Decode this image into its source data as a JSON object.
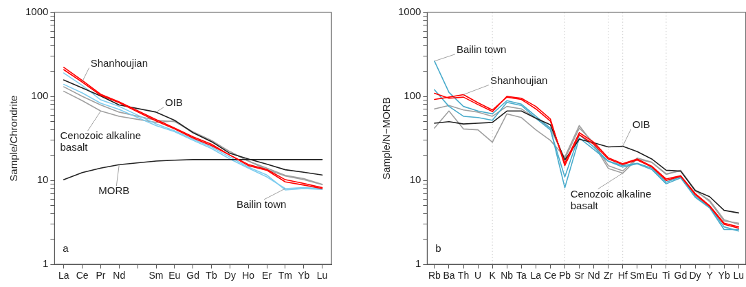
{
  "chart_data": [
    {
      "type": "line",
      "ylabel": "Sample/Chrondrite",
      "categories": [
        "La",
        "Ce",
        "Pr",
        "Nd",
        null,
        "Sm",
        "Eu",
        "Gd",
        "Tb",
        "Dy",
        "Ho",
        "Er",
        "Tm",
        "Yb",
        "Lu"
      ],
      "log": "y",
      "ylim": [
        1,
        1000
      ],
      "yticks": [
        1,
        {
          "value": 2,
          "label": null
        },
        {
          "value": 3,
          "label": null
        },
        {
          "value": 4,
          "label": null
        },
        {
          "value": 5,
          "label": null
        },
        {
          "value": 6,
          "label": null
        },
        {
          "value": 7,
          "label": null
        },
        {
          "value": 8,
          "label": null
        },
        {
          "value": 9,
          "label": null
        },
        10,
        {
          "value": 20,
          "label": null
        },
        {
          "value": 30,
          "label": null
        },
        {
          "value": 40,
          "label": null
        },
        {
          "value": 50,
          "label": null
        },
        {
          "value": 60,
          "label": null
        },
        {
          "value": 70,
          "label": null
        },
        {
          "value": 80,
          "label": null
        },
        {
          "value": 90,
          "label": null
        },
        100,
        {
          "value": 200,
          "label": null
        },
        {
          "value": 300,
          "label": null
        },
        {
          "value": 400,
          "label": null
        },
        {
          "value": 500,
          "label": null
        },
        {
          "value": 600,
          "label": null
        },
        {
          "value": 700,
          "label": null
        },
        {
          "value": 800,
          "label": null
        },
        {
          "value": 900,
          "label": null
        },
        1000
      ],
      "grid": false,
      "legend": false,
      "marker": "none",
      "line_style": "solid",
      "series": [
        {
          "color": "#a0a0a0",
          "values": [
            115,
            89,
            67,
            58,
            null,
            49,
            51,
            37,
            29,
            22,
            17,
            13.5,
            11.3,
            10.2,
            8.9
          ]
        },
        {
          "color": "#a0a0a0",
          "values": [
            130,
            100,
            79,
            65,
            null,
            52,
            50,
            38,
            30,
            22,
            17,
            14,
            11.5,
            10.5,
            9
          ]
        },
        {
          "color": "#7fcdef",
          "values": [
            190,
            135,
            91,
            76,
            null,
            47,
            39,
            31,
            25,
            19,
            14.4,
            11.6,
            7.7,
            8,
            7.8
          ]
        },
        {
          "color": "#7fcdef",
          "values": [
            139,
            110,
            83,
            70,
            null,
            45,
            38,
            30,
            24,
            18,
            14,
            11,
            8,
            8.2,
            8
          ]
        },
        {
          "color": "#222222",
          "values": [
            157,
            126,
            101,
            79,
            null,
            65,
            52,
            37,
            29,
            21,
            18,
            15.6,
            13.4,
            12.5,
            11.6
          ]
        },
        {
          "color": "#222222",
          "values": [
            10.2,
            12.4,
            14,
            15.4,
            null,
            17,
            17.4,
            17.7,
            17.7,
            17.7,
            17.7,
            17.7,
            17.7,
            17.7,
            17.7
          ]
        },
        {
          "color": "#ff0000",
          "values": [
            208,
            148,
            103,
            84,
            null,
            51,
            41,
            32,
            26,
            20,
            15,
            13.2,
            9.6,
            8.8,
            8
          ]
        },
        {
          "color": "#ff0000",
          "values": [
            222,
            155,
            106,
            86,
            null,
            53,
            42,
            33,
            27,
            20,
            15.5,
            13.5,
            10.2,
            9.2,
            8.2
          ]
        }
      ],
      "annotations": [
        {
          "text": "Shanhoujian",
          "x": "Ce",
          "y": 150
        },
        {
          "text": "OIB",
          "x": "Sm",
          "y": 65
        },
        {
          "text": "Cenozoic alkaline basalt",
          "x": "Pr",
          "y": 67
        },
        {
          "text": "MORB",
          "x": "Nd",
          "y": 15.4
        },
        {
          "text": "Bailin town",
          "x": "Tm",
          "y": 8
        },
        "a"
      ]
    },
    {
      "type": "line",
      "ylabel": "Sample/N−MORB",
      "categories": [
        "Rb",
        "Ba",
        "Th",
        "U",
        "K",
        "Nb",
        "Ta",
        "La",
        "Ce",
        "Pb",
        "Sr",
        "Nd",
        "Zr",
        "Hf",
        "Sm",
        "Eu",
        "Ti",
        "Gd",
        "Dy",
        "Y",
        "Yb",
        "Lu"
      ],
      "log": "y",
      "ylim": [
        1,
        1000
      ],
      "yticks": [
        1,
        {
          "value": 2,
          "label": null
        },
        {
          "value": 3,
          "label": null
        },
        {
          "value": 4,
          "label": null
        },
        {
          "value": 5,
          "label": null
        },
        {
          "value": 6,
          "label": null
        },
        {
          "value": 7,
          "label": null
        },
        {
          "value": 8,
          "label": null
        },
        {
          "value": 9,
          "label": null
        },
        10,
        {
          "value": 20,
          "label": null
        },
        {
          "value": 30,
          "label": null
        },
        {
          "value": 40,
          "label": null
        },
        {
          "value": 50,
          "label": null
        },
        {
          "value": 60,
          "label": null
        },
        {
          "value": 70,
          "label": null
        },
        {
          "value": 80,
          "label": null
        },
        {
          "value": 90,
          "label": null
        },
        100,
        {
          "value": 200,
          "label": null
        },
        {
          "value": 300,
          "label": null
        },
        {
          "value": 400,
          "label": null
        },
        {
          "value": 500,
          "label": null
        },
        {
          "value": 600,
          "label": null
        },
        {
          "value": 700,
          "label": null
        },
        {
          "value": 800,
          "label": null
        },
        {
          "value": 900,
          "label": null
        },
        1000
      ],
      "grid": false,
      "legend": false,
      "marker": "none",
      "line_style": "solid",
      "ref_lines": [
        {
          "axis": "x",
          "value": "K",
          "color": "#cccccc",
          "line_style": "dotted"
        },
        {
          "axis": "x",
          "value": "Pb",
          "color": "#cccccc",
          "line_style": "dotted"
        },
        {
          "axis": "x",
          "value": "Zr",
          "color": "#cccccc",
          "line_style": "dotted"
        },
        {
          "axis": "x",
          "value": "Hf",
          "color": "#cccccc",
          "line_style": "dotted"
        },
        {
          "axis": "x",
          "value": "Ti",
          "color": "#cccccc",
          "line_style": "dotted"
        }
      ],
      "series": [
        {
          "color": "#a0a0a0",
          "values": [
            42,
            67,
            41,
            40,
            28.5,
            62,
            56,
            40,
            30,
            19,
            45,
            26.7,
            13.9,
            12.2,
            18,
            16.4,
            11.8,
            13.2,
            7.7,
            5.6,
            3.3,
            3.1
          ]
        },
        {
          "color": "#a0a0a0",
          "values": [
            71,
            78,
            69,
            65,
            58,
            76,
            71,
            55,
            42,
            18,
            42,
            28,
            15,
            13,
            18.5,
            16.5,
            12,
            13,
            7.5,
            5.8,
            3.4,
            3.0
          ]
        },
        {
          "color": "#4aaccc",
          "values": [
            263,
            112,
            76,
            67,
            62,
            89,
            81,
            58,
            42,
            8.2,
            32,
            23.4,
            16.9,
            14.4,
            15.8,
            13.5,
            9.1,
            10.7,
            6.3,
            4.7,
            2.6,
            2.6
          ]
        },
        {
          "color": "#4aaccc",
          "values": [
            120,
            76,
            58,
            56,
            52,
            85,
            78,
            55,
            40,
            11,
            35,
            25,
            17,
            15,
            16,
            14,
            9.5,
            11,
            6.5,
            4.8,
            2.8,
            2.5
          ]
        },
        {
          "color": "#222222",
          "values": [
            48,
            50,
            47,
            48,
            49,
            67,
            67,
            55,
            46,
            17.5,
            31,
            28,
            25,
            25.5,
            22,
            18,
            13.2,
            12.9,
            7.6,
            6.4,
            4.4,
            4.1
          ]
        },
        {
          "color": "#ff0000",
          "values": [
            92,
            98,
            105,
            84,
            69,
            98,
            92,
            71,
            51,
            16,
            37,
            28.5,
            18.6,
            15.8,
            18,
            14.8,
            10.4,
            11.4,
            7.0,
            5.0,
            3.1,
            2.8
          ]
        },
        {
          "color": "#ff0000",
          "values": [
            109,
            95,
            98,
            80,
            66,
            100,
            95,
            76,
            54,
            15,
            35,
            27,
            18,
            15.5,
            17.5,
            14.5,
            10,
            11.2,
            6.8,
            4.9,
            3.0,
            2.7
          ]
        }
      ],
      "annotations": [
        {
          "text": "Bailin town",
          "x": "Rb",
          "y": 263
        },
        {
          "text": "Shanhoujian",
          "x": "Th",
          "y": 105
        },
        {
          "text": "OIB",
          "x": "Hf",
          "y": 25.5
        },
        {
          "text": "Cenozoic alkaline basalt",
          "x": "Hf",
          "y": 12.2
        },
        "b"
      ]
    }
  ]
}
